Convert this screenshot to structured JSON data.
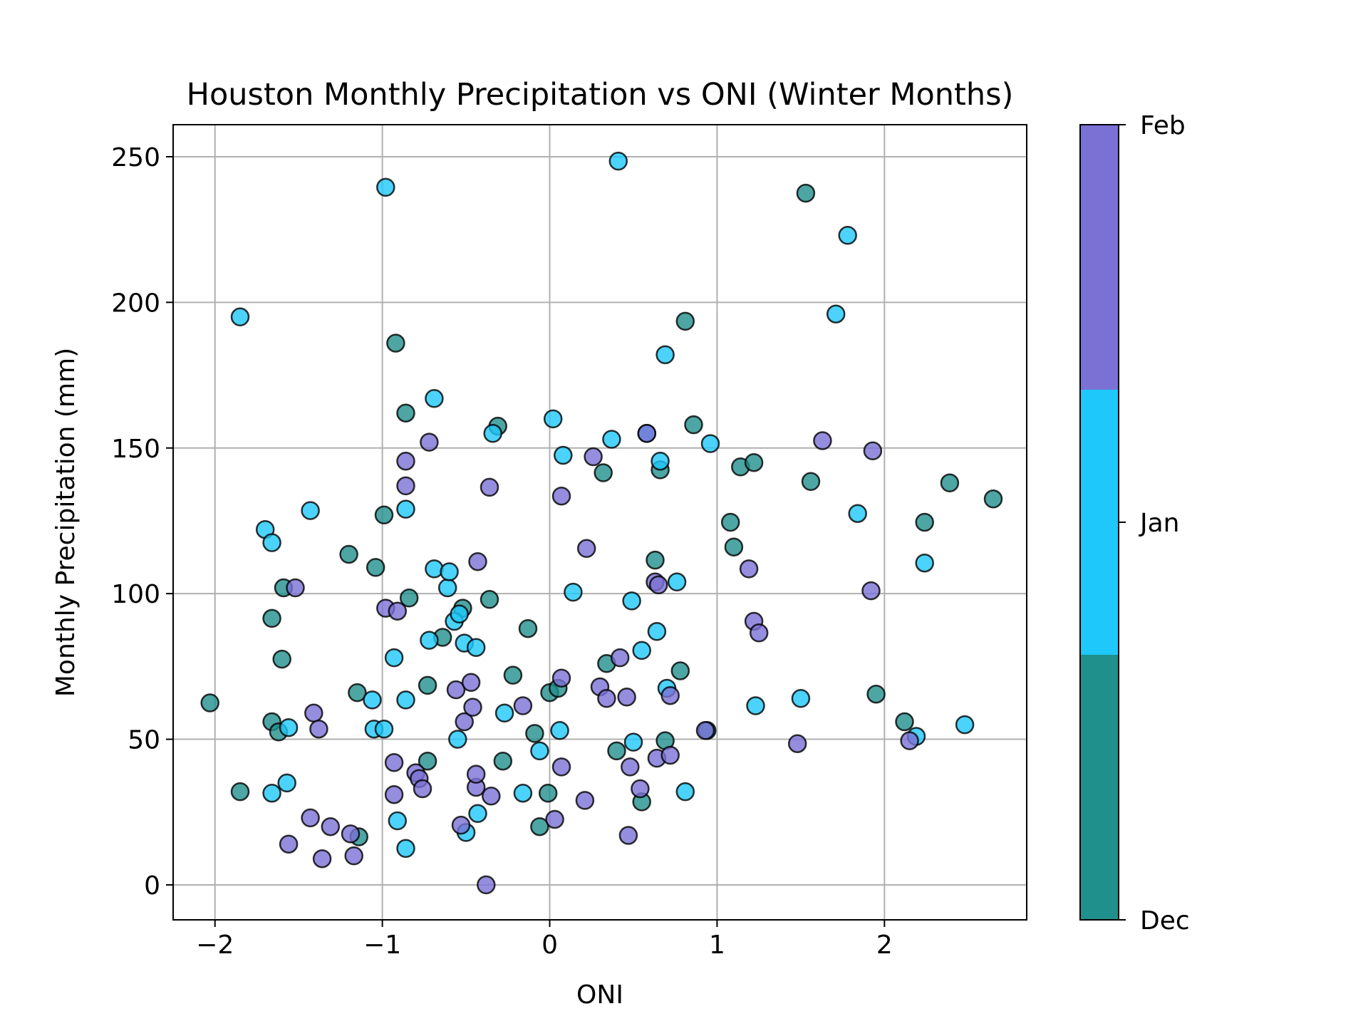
{
  "chart_data": {
    "type": "scatter",
    "title": "Houston Monthly Precipitation vs ONI (Winter Months)",
    "xlabel": "ONI",
    "ylabel": "Monthly Precipitation (mm)",
    "xlim": [
      -2.25,
      2.85
    ],
    "ylim": [
      -12,
      261
    ],
    "xticks": [
      -2,
      -1,
      0,
      1,
      2
    ],
    "xtick_labels": [
      "−2",
      "−1",
      "0",
      "1",
      "2"
    ],
    "yticks": [
      0,
      50,
      100,
      150,
      200,
      250
    ],
    "ytick_labels": [
      "0",
      "50",
      "100",
      "150",
      "200",
      "250"
    ],
    "grid": true,
    "colorbar": {
      "ticks": [
        "Dec",
        "Jan",
        "Feb"
      ],
      "colors": {
        "Dec": "#20908c",
        "Jan": "#1ec8fa",
        "Feb": "#7b70d4"
      },
      "position": "right"
    },
    "marker_edge_color": "#000000",
    "marker_alpha": 0.8,
    "series": [
      {
        "name": "Dec",
        "color": "#20908c",
        "points": [
          [
            -2.03,
            62.5
          ],
          [
            -1.85,
            32
          ],
          [
            -1.66,
            91.5
          ],
          [
            -1.66,
            56
          ],
          [
            -1.62,
            52.5
          ],
          [
            -1.6,
            77.5
          ],
          [
            -1.59,
            102
          ],
          [
            -1.2,
            113.5
          ],
          [
            -1.15,
            66
          ],
          [
            -1.14,
            16.5
          ],
          [
            -1.04,
            109
          ],
          [
            -0.99,
            127
          ],
          [
            -0.92,
            186
          ],
          [
            -0.86,
            162
          ],
          [
            -0.84,
            98.5
          ],
          [
            -0.73,
            68.5
          ],
          [
            -0.73,
            42.5
          ],
          [
            -0.64,
            85
          ],
          [
            -0.52,
            95
          ],
          [
            -0.36,
            98
          ],
          [
            -0.31,
            157.5
          ],
          [
            -0.28,
            42.5
          ],
          [
            -0.22,
            72
          ],
          [
            -0.13,
            88
          ],
          [
            -0.09,
            52
          ],
          [
            -0.06,
            20
          ],
          [
            -0.01,
            31.5
          ],
          [
            0.0,
            66
          ],
          [
            0.05,
            67.5
          ],
          [
            0.32,
            141.5
          ],
          [
            0.34,
            76
          ],
          [
            0.4,
            46
          ],
          [
            0.55,
            28.5
          ],
          [
            0.63,
            111.5
          ],
          [
            0.66,
            142.5
          ],
          [
            0.69,
            49.5
          ],
          [
            0.78,
            73.5
          ],
          [
            0.81,
            193.5
          ],
          [
            0.86,
            158
          ],
          [
            0.94,
            53
          ],
          [
            1.08,
            124.5
          ],
          [
            1.1,
            116
          ],
          [
            1.14,
            143.5
          ],
          [
            1.22,
            145
          ],
          [
            1.53,
            237.5
          ],
          [
            1.56,
            138.5
          ],
          [
            1.95,
            65.5
          ],
          [
            2.12,
            56
          ],
          [
            2.24,
            124.5
          ],
          [
            2.39,
            138
          ],
          [
            2.65,
            132.5
          ]
        ]
      },
      {
        "name": "Jan",
        "color": "#1ec8fa",
        "points": [
          [
            -1.85,
            195
          ],
          [
            -1.7,
            122
          ],
          [
            -1.66,
            31.5
          ],
          [
            -1.66,
            117.5
          ],
          [
            -1.57,
            35
          ],
          [
            -1.56,
            54
          ],
          [
            -1.43,
            128.5
          ],
          [
            -1.06,
            63.5
          ],
          [
            -1.05,
            53.5
          ],
          [
            -0.99,
            53.5
          ],
          [
            -0.98,
            239.5
          ],
          [
            -0.93,
            78
          ],
          [
            -0.91,
            22
          ],
          [
            -0.86,
            129
          ],
          [
            -0.86,
            63.5
          ],
          [
            -0.86,
            12.5
          ],
          [
            -0.72,
            84
          ],
          [
            -0.69,
            108.5
          ],
          [
            -0.69,
            167
          ],
          [
            -0.61,
            102
          ],
          [
            -0.6,
            107.5
          ],
          [
            -0.57,
            90.5
          ],
          [
            -0.55,
            50
          ],
          [
            -0.54,
            93
          ],
          [
            -0.51,
            83
          ],
          [
            -0.5,
            18
          ],
          [
            -0.44,
            81.5
          ],
          [
            -0.43,
            24.5
          ],
          [
            -0.34,
            155
          ],
          [
            -0.27,
            59
          ],
          [
            -0.16,
            31.5
          ],
          [
            -0.06,
            46
          ],
          [
            0.02,
            160
          ],
          [
            0.06,
            53
          ],
          [
            0.08,
            147.5
          ],
          [
            0.14,
            100.5
          ],
          [
            0.37,
            153
          ],
          [
            0.41,
            248.5
          ],
          [
            0.49,
            97.5
          ],
          [
            0.5,
            49
          ],
          [
            0.55,
            80.5
          ],
          [
            0.58,
            155
          ],
          [
            0.64,
            87
          ],
          [
            0.66,
            145.5
          ],
          [
            0.69,
            182
          ],
          [
            0.7,
            67.5
          ],
          [
            0.76,
            104
          ],
          [
            0.81,
            32
          ],
          [
            0.96,
            151.5
          ],
          [
            1.23,
            61.5
          ],
          [
            1.5,
            64
          ],
          [
            1.71,
            196
          ],
          [
            1.78,
            223
          ],
          [
            1.84,
            127.5
          ],
          [
            2.19,
            51
          ],
          [
            2.24,
            110.5
          ],
          [
            2.48,
            55
          ]
        ]
      },
      {
        "name": "Feb",
        "color": "#7b70d4",
        "points": [
          [
            -1.56,
            14
          ],
          [
            -1.52,
            102
          ],
          [
            -1.43,
            23
          ],
          [
            -1.41,
            59
          ],
          [
            -1.38,
            53.5
          ],
          [
            -1.36,
            9
          ],
          [
            -1.31,
            20
          ],
          [
            -1.19,
            17.5
          ],
          [
            -1.17,
            10
          ],
          [
            -0.98,
            95
          ],
          [
            -0.93,
            42
          ],
          [
            -0.93,
            31
          ],
          [
            -0.91,
            94
          ],
          [
            -0.86,
            145.5
          ],
          [
            -0.86,
            137
          ],
          [
            -0.8,
            38.5
          ],
          [
            -0.78,
            36.5
          ],
          [
            -0.76,
            33
          ],
          [
            -0.72,
            152
          ],
          [
            -0.56,
            67
          ],
          [
            -0.53,
            20.5
          ],
          [
            -0.51,
            56
          ],
          [
            -0.47,
            69.5
          ],
          [
            -0.46,
            61
          ],
          [
            -0.44,
            33.5
          ],
          [
            -0.44,
            38
          ],
          [
            -0.43,
            111
          ],
          [
            -0.38,
            0
          ],
          [
            -0.36,
            136.5
          ],
          [
            -0.35,
            30.5
          ],
          [
            -0.16,
            61.5
          ],
          [
            0.03,
            22.5
          ],
          [
            0.07,
            40.5
          ],
          [
            0.07,
            71
          ],
          [
            0.07,
            133.5
          ],
          [
            0.21,
            29
          ],
          [
            0.22,
            115.5
          ],
          [
            0.26,
            147
          ],
          [
            0.3,
            68
          ],
          [
            0.34,
            64
          ],
          [
            0.42,
            78
          ],
          [
            0.46,
            64.5
          ],
          [
            0.47,
            17
          ],
          [
            0.48,
            40.5
          ],
          [
            0.54,
            33
          ],
          [
            0.58,
            155
          ],
          [
            0.63,
            104
          ],
          [
            0.64,
            43.5
          ],
          [
            0.65,
            103
          ],
          [
            0.72,
            65
          ],
          [
            0.72,
            44.5
          ],
          [
            0.93,
            53
          ],
          [
            1.19,
            108.5
          ],
          [
            1.22,
            90.5
          ],
          [
            1.25,
            86.5
          ],
          [
            1.48,
            48.5
          ],
          [
            1.63,
            152.5
          ],
          [
            1.92,
            101
          ],
          [
            1.93,
            149
          ],
          [
            2.15,
            49.5
          ]
        ]
      }
    ]
  }
}
